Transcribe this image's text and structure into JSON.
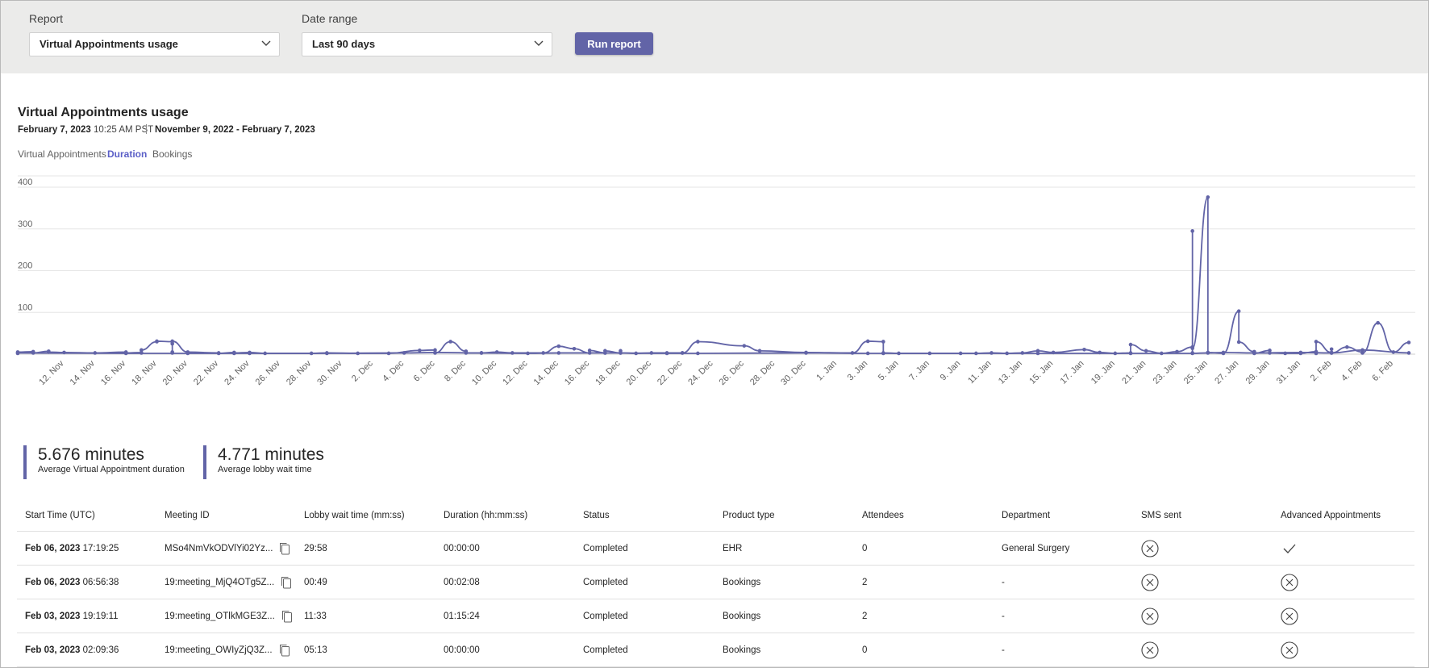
{
  "filters": {
    "report_label": "Report",
    "report_value": "Virtual Appointments usage",
    "date_label": "Date range",
    "date_value": "Last 90 days",
    "run_label": "Run report"
  },
  "report": {
    "title": "Virtual Appointments usage",
    "generated_date": "February 7, 2023",
    "generated_time": "10:25 AM PST",
    "range": "November 9, 2022 - February 7, 2023"
  },
  "tabs": [
    {
      "label": "Virtual Appointments",
      "active": false
    },
    {
      "label": "Duration",
      "active": true
    },
    {
      "label": "Bookings",
      "active": false
    }
  ],
  "chart_data": {
    "type": "line",
    "title": "",
    "xlabel": "",
    "ylabel": "",
    "ylim": [
      0,
      400
    ],
    "yticks": [
      100,
      200,
      300,
      400
    ],
    "grid": true,
    "color": "#6264a7",
    "xlim": [
      "2022-11-09",
      "2023-02-07"
    ],
    "xticks": [
      "12. Nov",
      "14. Nov",
      "16. Nov",
      "18. Nov",
      "20. Nov",
      "22. Nov",
      "24. Nov",
      "26. Nov",
      "28. Nov",
      "30. Nov",
      "2. Dec",
      "4. Dec",
      "6. Dec",
      "8. Dec",
      "10. Dec",
      "12. Dec",
      "14. Dec",
      "16. Dec",
      "18. Dec",
      "20. Dec",
      "22. Dec",
      "24. Dec",
      "26. Dec",
      "28. Dec",
      "30. Dec",
      "1. Jan",
      "3. Jan",
      "5. Jan",
      "7. Jan",
      "9. Jan",
      "11. Jan",
      "13. Jan",
      "15. Jan",
      "17. Jan",
      "19. Jan",
      "21. Jan",
      "23. Jan",
      "25. Jan",
      "27. Jan",
      "29. Jan",
      "31. Jan",
      "2. Feb",
      "4. Feb",
      "6. Feb"
    ],
    "series": [
      {
        "values": [
          [
            "2022-11-09",
            2
          ],
          [
            "2022-11-09",
            5
          ],
          [
            "2022-11-10",
            6
          ],
          [
            "2022-11-10",
            3
          ],
          [
            "2022-11-11",
            7
          ],
          [
            "2022-11-11",
            5
          ],
          [
            "2022-11-12",
            4
          ],
          [
            "2022-11-14",
            3
          ],
          [
            "2022-11-16",
            5
          ],
          [
            "2022-11-16",
            3
          ],
          [
            "2022-11-17",
            4
          ],
          [
            "2022-11-17",
            3
          ],
          [
            "2022-11-17",
            10
          ],
          [
            "2022-11-18",
            30
          ],
          [
            "2022-11-18",
            31
          ],
          [
            "2022-11-19",
            30
          ],
          [
            "2022-11-19",
            25
          ],
          [
            "2022-11-19",
            5
          ],
          [
            "2022-11-19",
            3
          ],
          [
            "2022-11-19",
            31
          ],
          [
            "2022-11-20",
            5
          ],
          [
            "2022-11-22",
            3
          ],
          [
            "2022-11-22",
            2
          ],
          [
            "2022-11-23",
            4
          ],
          [
            "2022-11-23",
            3
          ],
          [
            "2022-11-24",
            4
          ],
          [
            "2022-11-25",
            2
          ],
          [
            "2022-11-28",
            2
          ],
          [
            "2022-11-29",
            3
          ],
          [
            "2022-12-01",
            2
          ],
          [
            "2022-12-03",
            2
          ],
          [
            "2022-12-05",
            9
          ],
          [
            "2022-12-06",
            10
          ],
          [
            "2022-12-06",
            3
          ],
          [
            "2022-12-07",
            30
          ],
          [
            "2022-12-08",
            7
          ],
          [
            "2022-12-08",
            3
          ],
          [
            "2022-12-09",
            3
          ],
          [
            "2022-12-10",
            5
          ],
          [
            "2022-12-11",
            3
          ],
          [
            "2022-12-13",
            3
          ],
          [
            "2022-12-14",
            19
          ],
          [
            "2022-12-15",
            13
          ],
          [
            "2022-12-16",
            3
          ],
          [
            "2022-12-16",
            9
          ],
          [
            "2022-12-17",
            3
          ],
          [
            "2022-12-17",
            8
          ],
          [
            "2022-12-18",
            3
          ],
          [
            "2022-12-18",
            8
          ],
          [
            "2022-12-18",
            3
          ],
          [
            "2022-12-19",
            2
          ],
          [
            "2022-12-20",
            3
          ],
          [
            "2022-12-21",
            3
          ],
          [
            "2022-12-22",
            3
          ],
          [
            "2022-12-22",
            3
          ],
          [
            "2022-12-23",
            30
          ],
          [
            "2022-12-26",
            20
          ],
          [
            "2022-12-27",
            8
          ],
          [
            "2022-12-30",
            4
          ],
          [
            "2023-01-02",
            3
          ],
          [
            "2023-01-03",
            31
          ],
          [
            "2023-01-04",
            30
          ],
          [
            "2023-01-04",
            3
          ],
          [
            "2023-01-05",
            2
          ],
          [
            "2023-01-07",
            2
          ],
          [
            "2023-01-09",
            2
          ],
          [
            "2023-01-10",
            2
          ],
          [
            "2023-01-11",
            3
          ],
          [
            "2023-01-12",
            2
          ],
          [
            "2023-01-13",
            3
          ],
          [
            "2023-01-14",
            8
          ],
          [
            "2023-01-15",
            4
          ],
          [
            "2023-01-17",
            11
          ],
          [
            "2023-01-18",
            4
          ],
          [
            "2023-01-19",
            2
          ],
          [
            "2023-01-20",
            3
          ],
          [
            "2023-01-20",
            23
          ],
          [
            "2023-01-21",
            8
          ],
          [
            "2023-01-22",
            2
          ],
          [
            "2023-01-23",
            6
          ],
          [
            "2023-01-24",
            17
          ],
          [
            "2023-01-24",
            295
          ],
          [
            "2023-01-24",
            3
          ],
          [
            "2023-01-24",
            14
          ],
          [
            "2023-01-25",
            376
          ],
          [
            "2023-01-25",
            4
          ],
          [
            "2023-01-26",
            2
          ],
          [
            "2023-01-27",
            103
          ],
          [
            "2023-01-27",
            29
          ],
          [
            "2023-01-28",
            6
          ],
          [
            "2023-01-28",
            2
          ],
          [
            "2023-01-29",
            9
          ],
          [
            "2023-01-29",
            3
          ],
          [
            "2023-01-30",
            2
          ],
          [
            "2023-01-31",
            2
          ],
          [
            "2023-02-01",
            6
          ],
          [
            "2023-02-01",
            2
          ],
          [
            "2023-02-01",
            30
          ],
          [
            "2023-02-02",
            4
          ],
          [
            "2023-02-02",
            12
          ],
          [
            "2023-02-02",
            3
          ],
          [
            "2023-02-03",
            17
          ],
          [
            "2023-02-04",
            5
          ],
          [
            "2023-02-04",
            3
          ],
          [
            "2023-02-05",
            75
          ],
          [
            "2023-02-06",
            5
          ],
          [
            "2023-02-07",
            28
          ]
        ]
      },
      {
        "values": [
          [
            "2022-11-09",
            3
          ],
          [
            "2022-11-16",
            2
          ],
          [
            "2022-11-20",
            2
          ],
          [
            "2022-11-23",
            2
          ],
          [
            "2022-11-24",
            2
          ],
          [
            "2022-11-29",
            2
          ],
          [
            "2022-12-04",
            3
          ],
          [
            "2022-12-06",
            4
          ],
          [
            "2022-12-09",
            3
          ],
          [
            "2022-12-12",
            2
          ],
          [
            "2022-12-14",
            3
          ],
          [
            "2022-12-17",
            3
          ],
          [
            "2022-12-21",
            2
          ],
          [
            "2022-12-23",
            2
          ],
          [
            "2022-12-30",
            3
          ],
          [
            "2023-01-03",
            2
          ],
          [
            "2023-01-04",
            2
          ],
          [
            "2023-01-14",
            2
          ],
          [
            "2023-01-20",
            2
          ],
          [
            "2023-01-24",
            2
          ],
          [
            "2023-01-25",
            3
          ],
          [
            "2023-01-26",
            4
          ],
          [
            "2023-01-28",
            3
          ],
          [
            "2023-01-31",
            4
          ],
          [
            "2023-02-02",
            3
          ],
          [
            "2023-02-04",
            10
          ],
          [
            "2023-02-07",
            3
          ]
        ]
      }
    ]
  },
  "kpis": [
    {
      "value": "5.676 minutes",
      "label": "Average Virtual Appointment duration"
    },
    {
      "value": "4.771 minutes",
      "label": "Average lobby wait time"
    }
  ],
  "table": {
    "columns": [
      "Start Time (UTC)",
      "Meeting ID",
      "Lobby wait time (mm:ss)",
      "Duration (hh:mm:ss)",
      "Status",
      "Product type",
      "Attendees",
      "Department",
      "SMS sent",
      "Advanced Appointments"
    ],
    "rows": [
      {
        "date": "Feb 06, 2023",
        "time": "17:19:25",
        "meeting_id": "MSo4NmVkODVlYi02Yz...",
        "lobby": "29:58",
        "duration": "00:00:00",
        "status": "Completed",
        "product": "EHR",
        "attendees": "0",
        "department": "General Surgery",
        "sms_icon": "x-circle-icon",
        "advanced_icon": "checkmark-icon"
      },
      {
        "date": "Feb 06, 2023",
        "time": "06:56:38",
        "meeting_id": "19:meeting_MjQ4OTg5Z...",
        "lobby": "00:49",
        "duration": "00:02:08",
        "status": "Completed",
        "product": "Bookings",
        "attendees": "2",
        "department": "-",
        "sms_icon": "x-circle-icon",
        "advanced_icon": "x-circle-icon"
      },
      {
        "date": "Feb 03, 2023",
        "time": "19:19:11",
        "meeting_id": "19:meeting_OTlkMGE3Z...",
        "lobby": "11:33",
        "duration": "01:15:24",
        "status": "Completed",
        "product": "Bookings",
        "attendees": "2",
        "department": "-",
        "sms_icon": "x-circle-icon",
        "advanced_icon": "x-circle-icon"
      },
      {
        "date": "Feb 03, 2023",
        "time": "02:09:36",
        "meeting_id": "19:meeting_OWIyZjQ3Z...",
        "lobby": "05:13",
        "duration": "00:00:00",
        "status": "Completed",
        "product": "Bookings",
        "attendees": "0",
        "department": "-",
        "sms_icon": "x-circle-icon",
        "advanced_icon": "x-circle-icon"
      }
    ]
  }
}
